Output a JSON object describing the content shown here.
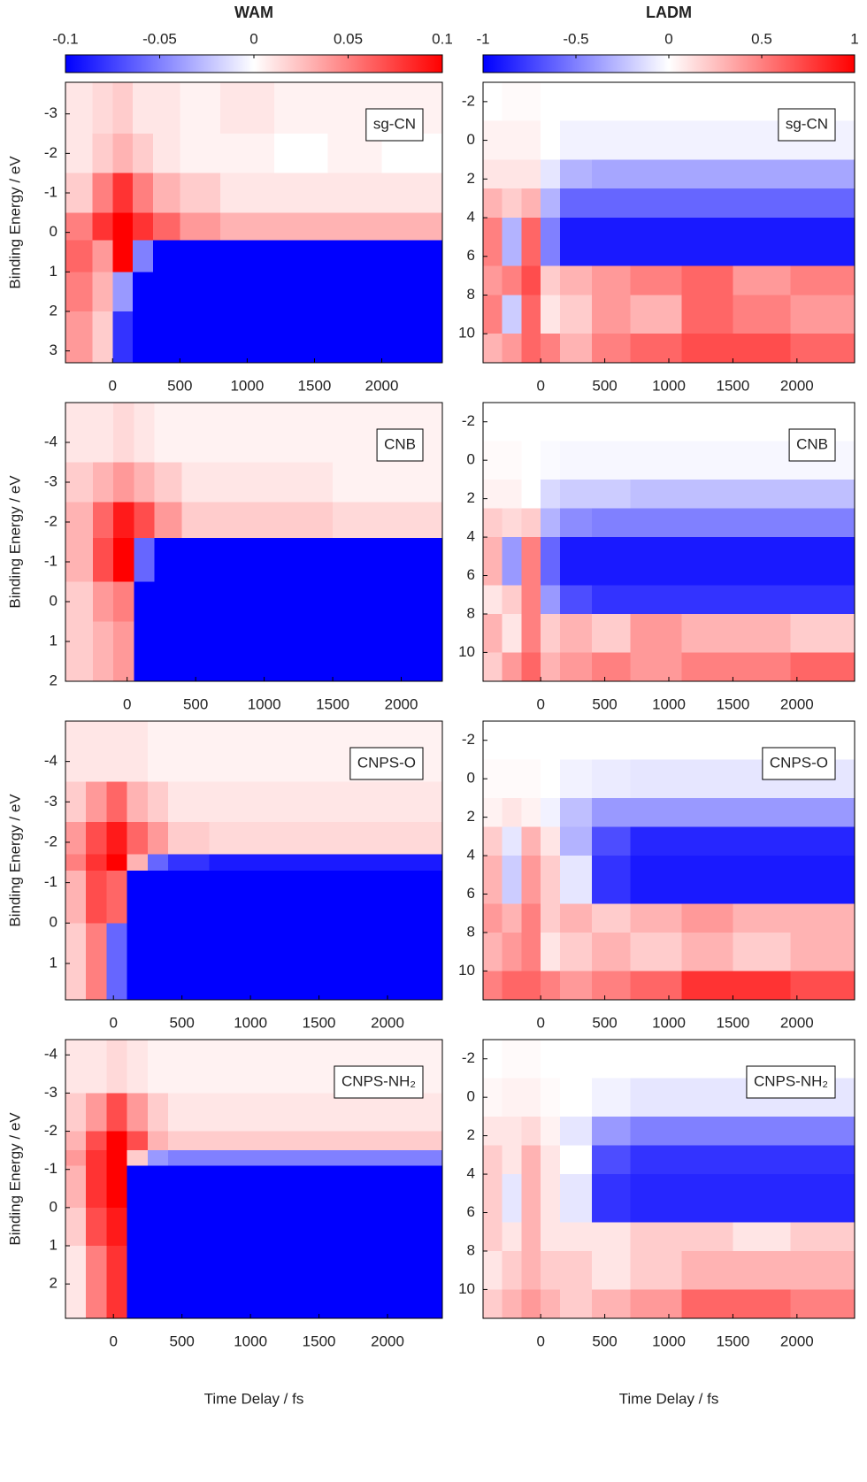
{
  "chart_data": [
    {
      "type": "colorbar",
      "title": "WAM",
      "lim": [
        -0.1,
        0.1
      ],
      "ticks": [
        -0.1,
        -0.05,
        0,
        0.05,
        0.1
      ]
    },
    {
      "type": "colorbar",
      "title": "LADM",
      "lim": [
        -1,
        1
      ],
      "ticks": [
        -1,
        -0.5,
        0,
        0.5,
        1
      ]
    },
    {
      "type": "heatmap",
      "label": "sg-CN",
      "label_color": "#6fd896",
      "ylabel": "Binding Energy / eV",
      "xlim": [
        -350,
        2450
      ],
      "xticks": [
        0,
        500,
        1000,
        1500,
        2000
      ],
      "ylim": [
        -3.8,
        3.3
      ],
      "yticks": [
        -3,
        -2,
        -1,
        0,
        1,
        2,
        3
      ],
      "zlim": [
        -0.1,
        0.1
      ],
      "x_edges": [
        -350,
        -150,
        0,
        150,
        300,
        500,
        800,
        1200,
        1600,
        2000,
        2450
      ],
      "y_edges": [
        -3.8,
        -2.5,
        -1.5,
        -0.5,
        0.2,
        1,
        2,
        3.3
      ],
      "values": [
        [
          0.01,
          0.015,
          0.02,
          0.01,
          0.01,
          0.005,
          0.01,
          0.005,
          0.005,
          0.005
        ],
        [
          0.01,
          0.02,
          0.03,
          0.02,
          0.01,
          0.005,
          0.005,
          0,
          0.005,
          0
        ],
        [
          0.02,
          0.05,
          0.08,
          0.05,
          0.03,
          0.02,
          0.01,
          0.01,
          0.01,
          0.01
        ],
        [
          0.05,
          0.08,
          0.1,
          0.08,
          0.06,
          0.04,
          0.03,
          0.03,
          0.03,
          0.03
        ],
        [
          0.06,
          0.04,
          0.1,
          -0.05,
          -0.1,
          -0.1,
          -0.1,
          -0.1,
          -0.1,
          -0.1
        ],
        [
          0.05,
          0.03,
          -0.04,
          -0.1,
          -0.1,
          -0.1,
          -0.1,
          -0.1,
          -0.1,
          -0.1
        ],
        [
          0.04,
          0.02,
          -0.08,
          -0.1,
          -0.1,
          -0.1,
          -0.1,
          -0.1,
          -0.1,
          -0.1
        ]
      ]
    },
    {
      "type": "heatmap",
      "label": "sg-CN",
      "label_color": "#6fd896",
      "xlim": [
        -450,
        2450
      ],
      "xticks": [
        0,
        500,
        1000,
        1500,
        2000
      ],
      "ylim": [
        -3,
        11.5
      ],
      "yticks": [
        -2,
        0,
        2,
        4,
        6,
        8,
        10
      ],
      "zlim": [
        -1,
        1
      ],
      "x_edges": [
        -450,
        -300,
        -150,
        0,
        150,
        400,
        700,
        1100,
        1500,
        1950,
        2450
      ],
      "y_edges": [
        -3,
        -1,
        1,
        2.5,
        4,
        6.5,
        8,
        10,
        11.5
      ],
      "values": [
        [
          0,
          0.02,
          0.02,
          0,
          0,
          0,
          0,
          0,
          0,
          0
        ],
        [
          0.05,
          0.05,
          0.05,
          0,
          -0.05,
          -0.05,
          -0.05,
          -0.05,
          -0.05,
          -0.05
        ],
        [
          0.1,
          0.1,
          0.1,
          -0.1,
          -0.3,
          -0.35,
          -0.35,
          -0.35,
          -0.35,
          -0.35
        ],
        [
          0.3,
          0.2,
          0.3,
          -0.3,
          -0.6,
          -0.6,
          -0.6,
          -0.6,
          -0.6,
          -0.6
        ],
        [
          0.5,
          -0.3,
          0.6,
          -0.5,
          -0.9,
          -0.9,
          -0.9,
          -0.9,
          -0.9,
          -0.9
        ],
        [
          0.4,
          0.5,
          0.7,
          0.2,
          0.3,
          0.4,
          0.5,
          0.6,
          0.4,
          0.5
        ],
        [
          0.5,
          -0.2,
          0.6,
          0.1,
          0.2,
          0.4,
          0.3,
          0.6,
          0.5,
          0.4
        ],
        [
          0.3,
          0.4,
          0.6,
          0.5,
          0.3,
          0.5,
          0.6,
          0.7,
          0.7,
          0.6
        ]
      ]
    },
    {
      "type": "heatmap",
      "label": "CNB",
      "label_color": "#000000",
      "ylabel": "Binding Energy / eV",
      "xlim": [
        -450,
        2300
      ],
      "xticks": [
        0,
        500,
        1000,
        1500,
        2000
      ],
      "ylim": [
        -5,
        2
      ],
      "yticks": [
        -4,
        -3,
        -2,
        -1,
        0,
        1,
        2
      ],
      "zlim": [
        -0.1,
        0.1
      ],
      "x_edges": [
        -450,
        -250,
        -100,
        50,
        200,
        400,
        700,
        1100,
        1500,
        1900,
        2300
      ],
      "y_edges": [
        -5,
        -3.5,
        -2.5,
        -1.6,
        -0.5,
        0.5,
        2
      ],
      "values": [
        [
          0.01,
          0.01,
          0.015,
          0.01,
          0.005,
          0.005,
          0.005,
          0.005,
          0.005,
          0.005
        ],
        [
          0.02,
          0.03,
          0.04,
          0.03,
          0.02,
          0.01,
          0.01,
          0.01,
          0.005,
          0.005
        ],
        [
          0.03,
          0.06,
          0.09,
          0.07,
          0.04,
          0.02,
          0.02,
          0.02,
          0.015,
          0.015
        ],
        [
          0.03,
          0.07,
          0.1,
          -0.06,
          -0.1,
          -0.1,
          -0.1,
          -0.1,
          -0.1,
          -0.1
        ],
        [
          0.02,
          0.04,
          0.05,
          -0.1,
          -0.1,
          -0.1,
          -0.1,
          -0.1,
          -0.1,
          -0.1
        ],
        [
          0.02,
          0.03,
          0.04,
          -0.1,
          -0.1,
          -0.1,
          -0.1,
          -0.1,
          -0.1,
          -0.1
        ]
      ]
    },
    {
      "type": "heatmap",
      "label": "CNB",
      "label_color": "#000000",
      "xlim": [
        -450,
        2450
      ],
      "xticks": [
        0,
        500,
        1000,
        1500,
        2000
      ],
      "ylim": [
        -3,
        11.5
      ],
      "yticks": [
        -2,
        0,
        2,
        4,
        6,
        8,
        10
      ],
      "zlim": [
        -1,
        1
      ],
      "x_edges": [
        -450,
        -300,
        -150,
        0,
        150,
        400,
        700,
        1100,
        1500,
        1950,
        2450
      ],
      "y_edges": [
        -3,
        -1,
        1,
        2.5,
        4,
        6.5,
        8,
        10,
        11.5
      ],
      "values": [
        [
          0,
          0,
          0,
          0,
          0,
          0,
          0,
          0,
          0,
          0
        ],
        [
          0.02,
          0.02,
          0,
          -0.02,
          -0.03,
          -0.03,
          -0.03,
          -0.03,
          -0.03,
          -0.03
        ],
        [
          0.05,
          0.05,
          0,
          -0.15,
          -0.2,
          -0.2,
          -0.25,
          -0.25,
          -0.25,
          -0.25
        ],
        [
          0.2,
          0.15,
          0.2,
          -0.3,
          -0.45,
          -0.5,
          -0.5,
          -0.5,
          -0.5,
          -0.5
        ],
        [
          0.3,
          -0.4,
          0.5,
          -0.6,
          -0.9,
          -0.9,
          -0.9,
          -0.9,
          -0.9,
          -0.9
        ],
        [
          0.1,
          0.2,
          0.5,
          -0.4,
          -0.7,
          -0.8,
          -0.8,
          -0.8,
          -0.8,
          -0.8
        ],
        [
          0.3,
          0.1,
          0.5,
          0.2,
          0.3,
          0.2,
          0.4,
          0.3,
          0.3,
          0.2
        ],
        [
          0.2,
          0.4,
          0.6,
          0.3,
          0.4,
          0.5,
          0.4,
          0.5,
          0.5,
          0.6
        ]
      ]
    },
    {
      "type": "heatmap",
      "label": "CNPS-O",
      "label_color": "#2ec4c4",
      "ylabel": "Binding Energy / eV",
      "xlim": [
        -350,
        2400
      ],
      "xticks": [
        0,
        500,
        1000,
        1500,
        2000
      ],
      "ylim": [
        -5,
        1.9
      ],
      "yticks": [
        -4,
        -3,
        -2,
        -1,
        0,
        1
      ],
      "zlim": [
        -0.1,
        0.1
      ],
      "x_edges": [
        -350,
        -200,
        -50,
        100,
        250,
        400,
        700,
        1100,
        1500,
        1900,
        2400
      ],
      "y_edges": [
        -5,
        -3.5,
        -2.5,
        -1.7,
        -1.3,
        0,
        1.9
      ],
      "values": [
        [
          0.01,
          0.01,
          0.01,
          0.01,
          0.005,
          0.005,
          0.005,
          0.005,
          0.005,
          0.005
        ],
        [
          0.02,
          0.04,
          0.06,
          0.03,
          0.02,
          0.01,
          0.01,
          0.01,
          0.01,
          0.01
        ],
        [
          0.04,
          0.07,
          0.09,
          0.06,
          0.04,
          0.02,
          0.015,
          0.015,
          0.015,
          0.015
        ],
        [
          0.05,
          0.08,
          0.1,
          0.03,
          -0.06,
          -0.08,
          -0.09,
          -0.09,
          -0.09,
          -0.09
        ],
        [
          0.03,
          0.07,
          0.06,
          -0.1,
          -0.1,
          -0.1,
          -0.1,
          -0.1,
          -0.1,
          -0.1
        ],
        [
          0.02,
          0.05,
          -0.06,
          -0.1,
          -0.1,
          -0.1,
          -0.1,
          -0.1,
          -0.1,
          -0.1
        ]
      ]
    },
    {
      "type": "heatmap",
      "label": "CNPS-O",
      "label_color": "#2ec4c4",
      "xlim": [
        -450,
        2450
      ],
      "xticks": [
        0,
        500,
        1000,
        1500,
        2000
      ],
      "ylim": [
        -3,
        11.5
      ],
      "yticks": [
        -2,
        0,
        2,
        4,
        6,
        8,
        10
      ],
      "zlim": [
        -1,
        1
      ],
      "x_edges": [
        -450,
        -300,
        -150,
        0,
        150,
        400,
        700,
        1100,
        1500,
        1950,
        2450
      ],
      "y_edges": [
        -3,
        -1,
        1,
        2.5,
        4,
        6.5,
        8,
        10,
        11.5
      ],
      "values": [
        [
          0,
          0,
          0,
          0,
          0,
          0,
          0,
          0,
          0,
          0
        ],
        [
          0.02,
          0.02,
          0.02,
          0,
          -0.05,
          -0.08,
          -0.1,
          -0.1,
          -0.1,
          -0.1
        ],
        [
          0.05,
          0.1,
          0.05,
          -0.05,
          -0.25,
          -0.4,
          -0.4,
          -0.4,
          -0.4,
          -0.4
        ],
        [
          0.2,
          -0.1,
          0.3,
          0.1,
          -0.3,
          -0.7,
          -0.85,
          -0.85,
          -0.85,
          -0.85
        ],
        [
          0.3,
          -0.2,
          0.4,
          0.2,
          -0.1,
          -0.8,
          -0.9,
          -0.9,
          -0.9,
          -0.9
        ],
        [
          0.4,
          0.3,
          0.5,
          0.2,
          0.3,
          0.2,
          0.3,
          0.4,
          0.3,
          0.3
        ],
        [
          0.3,
          0.4,
          0.5,
          0.1,
          0.2,
          0.3,
          0.2,
          0.3,
          0.2,
          0.3
        ],
        [
          0.5,
          0.6,
          0.6,
          0.5,
          0.4,
          0.5,
          0.6,
          0.8,
          0.8,
          0.7
        ]
      ]
    },
    {
      "type": "heatmap",
      "label": "CNPS-NH₂",
      "label_color": "#f2592a",
      "ylabel": "Binding Energy / eV",
      "xlabel": "Time Delay / fs",
      "xlim": [
        -350,
        2400
      ],
      "xticks": [
        0,
        500,
        1000,
        1500,
        2000
      ],
      "ylim": [
        -4.4,
        2.9
      ],
      "yticks": [
        -4,
        -3,
        -2,
        -1,
        0,
        1,
        2
      ],
      "zlim": [
        -0.1,
        0.1
      ],
      "x_edges": [
        -350,
        -200,
        -50,
        100,
        250,
        400,
        700,
        1100,
        1500,
        1900,
        2400
      ],
      "y_edges": [
        -4.4,
        -3,
        -2,
        -1.5,
        -1.1,
        0,
        1,
        2.9
      ],
      "values": [
        [
          0.01,
          0.01,
          0.015,
          0.01,
          0.005,
          0.005,
          0.005,
          0.005,
          0.005,
          0.005
        ],
        [
          0.02,
          0.04,
          0.07,
          0.04,
          0.02,
          0.01,
          0.01,
          0.01,
          0.01,
          0.01
        ],
        [
          0.03,
          0.07,
          0.1,
          0.07,
          0.03,
          0.02,
          0.02,
          0.02,
          0.02,
          0.02
        ],
        [
          0.04,
          0.08,
          0.1,
          0.02,
          -0.04,
          -0.05,
          -0.05,
          -0.05,
          -0.05,
          -0.05
        ],
        [
          0.03,
          0.08,
          0.1,
          -0.1,
          -0.1,
          -0.1,
          -0.1,
          -0.1,
          -0.1,
          -0.1
        ],
        [
          0.02,
          0.07,
          0.09,
          -0.1,
          -0.1,
          -0.1,
          -0.1,
          -0.1,
          -0.1,
          -0.1
        ],
        [
          0.01,
          0.05,
          0.08,
          -0.1,
          -0.1,
          -0.1,
          -0.1,
          -0.1,
          -0.1,
          -0.1
        ]
      ]
    },
    {
      "type": "heatmap",
      "label": "CNPS-NH₂",
      "label_color": "#f2592a",
      "xlabel": "Time Delay / fs",
      "xlim": [
        -450,
        2450
      ],
      "xticks": [
        0,
        500,
        1000,
        1500,
        2000
      ],
      "ylim": [
        -3,
        11.5
      ],
      "yticks": [
        -2,
        0,
        2,
        4,
        6,
        8,
        10
      ],
      "zlim": [
        -1,
        1
      ],
      "x_edges": [
        -450,
        -300,
        -150,
        0,
        150,
        400,
        700,
        1100,
        1500,
        1950,
        2450
      ],
      "y_edges": [
        -3,
        -1,
        1,
        2.5,
        4,
        6.5,
        8,
        10,
        11.5
      ],
      "values": [
        [
          0,
          0.02,
          0.02,
          0,
          0,
          0,
          0,
          0,
          0,
          0
        ],
        [
          0.03,
          0.05,
          0.05,
          0.02,
          0,
          -0.05,
          -0.1,
          -0.1,
          -0.1,
          -0.1
        ],
        [
          0.1,
          0.1,
          0.15,
          0.05,
          -0.1,
          -0.4,
          -0.5,
          -0.5,
          -0.5,
          -0.5
        ],
        [
          0.2,
          0.1,
          0.3,
          0.1,
          0,
          -0.7,
          -0.8,
          -0.8,
          -0.8,
          -0.8
        ],
        [
          0.2,
          -0.1,
          0.3,
          0.1,
          -0.1,
          -0.8,
          -0.85,
          -0.85,
          -0.85,
          -0.85
        ],
        [
          0.2,
          0.1,
          0.3,
          0.1,
          0.1,
          0.1,
          0.2,
          0.2,
          0.1,
          0.2
        ],
        [
          0.1,
          0.2,
          0.3,
          0.2,
          0.2,
          0.1,
          0.2,
          0.3,
          0.3,
          0.3
        ],
        [
          0.2,
          0.3,
          0.4,
          0.3,
          0.2,
          0.3,
          0.4,
          0.6,
          0.6,
          0.5
        ]
      ]
    }
  ]
}
